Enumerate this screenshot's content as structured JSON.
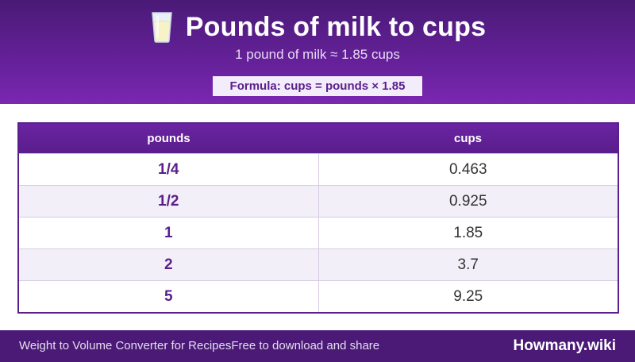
{
  "header": {
    "icon": "glass-of-milk-icon",
    "title": "Pounds of milk to cups",
    "subtitle": "1 pound of milk ≈ 1.85 cups",
    "formula": "Formula: cups = pounds × 1.85"
  },
  "table": {
    "columns": [
      "pounds",
      "cups"
    ],
    "rows": [
      {
        "pounds": "1/4",
        "cups": "0.463"
      },
      {
        "pounds": "1/2",
        "cups": "0.925"
      },
      {
        "pounds": "1",
        "cups": "1.85"
      },
      {
        "pounds": "2",
        "cups": "3.7"
      },
      {
        "pounds": "5",
        "cups": "9.25"
      }
    ]
  },
  "footer": {
    "app_name": "Weight to Volume Converter for Recipes",
    "tagline": "Free to download and share",
    "brand": "Howmany.wiki"
  },
  "colors": {
    "header_bg": "#4a1a76",
    "accent": "#5a1f8c",
    "alt_row": "#f3eff8"
  }
}
